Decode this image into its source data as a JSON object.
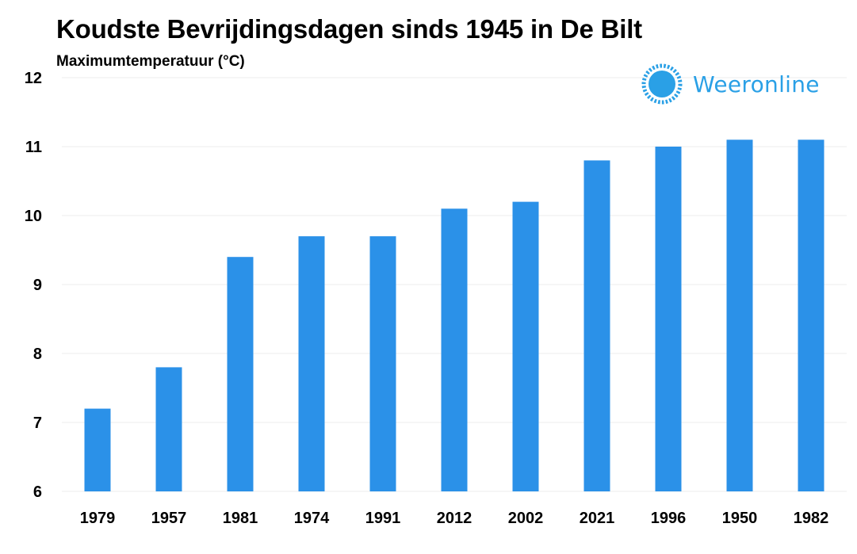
{
  "title": "Koudste Bevrijdingsdagen sinds 1945 in De Bilt",
  "subtitle": "Maximumtemperatuur (°C)",
  "logo": {
    "text": "Weeronline",
    "icon": "sun-icon",
    "color": "#2aa0e6"
  },
  "colors": {
    "bar": "#2b91e8",
    "grid": "#eeeeee",
    "text": "#000000"
  },
  "chart_data": {
    "type": "bar",
    "title": "Koudste Bevrijdingsdagen sinds 1945 in De Bilt",
    "ylabel": "Maximumtemperatuur (°C)",
    "xlabel": "",
    "categories": [
      "1979",
      "1957",
      "1981",
      "1974",
      "1991",
      "2012",
      "2002",
      "2021",
      "1996",
      "1950",
      "1982"
    ],
    "values": [
      7.2,
      7.8,
      9.4,
      9.7,
      9.7,
      10.1,
      10.2,
      10.8,
      11.0,
      11.1,
      11.1
    ],
    "ylim": [
      6,
      12
    ],
    "yticks": [
      6,
      7,
      8,
      9,
      10,
      11,
      12
    ],
    "grid": true,
    "legend": "none"
  }
}
